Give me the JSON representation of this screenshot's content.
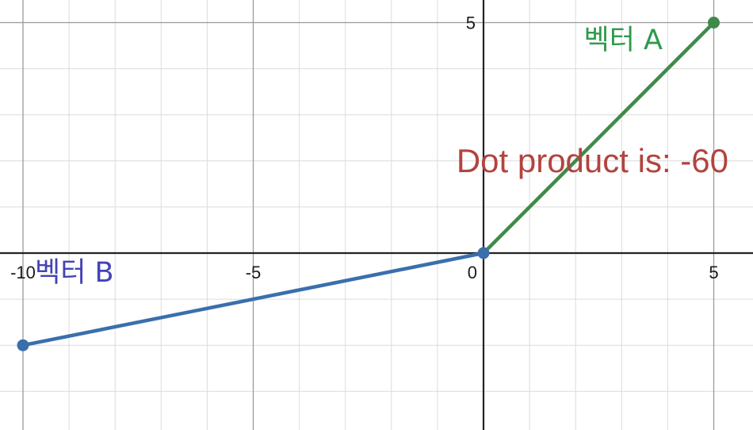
{
  "chart_data": {
    "type": "line",
    "x_range": [
      -10.5,
      5.85
    ],
    "y_range": [
      -3.85,
      5.5
    ],
    "grid": true,
    "minor_step": 1,
    "major_step": 5,
    "x_ticks": [
      {
        "value": -10,
        "label": "-10"
      },
      {
        "value": -5,
        "label": "-5"
      },
      {
        "value": 0,
        "label": "0"
      },
      {
        "value": 5,
        "label": "5"
      }
    ],
    "y_ticks": [
      {
        "value": 5,
        "label": "5"
      }
    ],
    "series": [
      {
        "name": "벡터 A",
        "color": "#3f8a4a",
        "label_color": "#2e9a4c",
        "points": [
          [
            0,
            0
          ],
          [
            5,
            5
          ]
        ]
      },
      {
        "name": "벡터 B",
        "color": "#3a6fad",
        "label_color": "#4343b6",
        "points": [
          [
            0,
            0
          ],
          [
            -10,
            -2
          ]
        ]
      }
    ],
    "annotations": [
      {
        "text": "Dot product is: -60",
        "color": "#b3433e"
      }
    ]
  }
}
